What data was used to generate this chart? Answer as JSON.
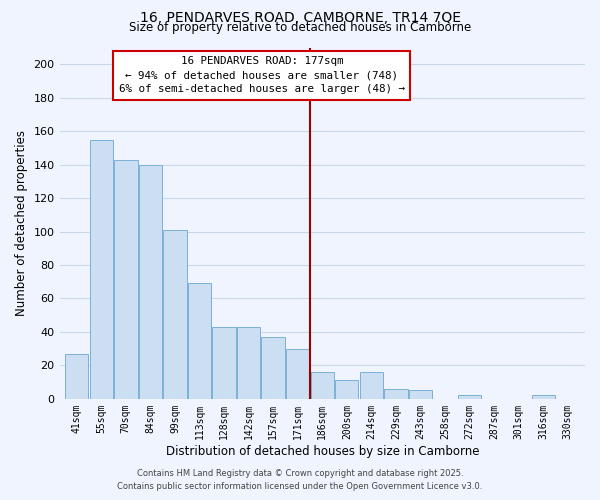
{
  "title": "16, PENDARVES ROAD, CAMBORNE, TR14 7QE",
  "subtitle": "Size of property relative to detached houses in Camborne",
  "xlabel": "Distribution of detached houses by size in Camborne",
  "ylabel": "Number of detached properties",
  "categories": [
    "41sqm",
    "55sqm",
    "70sqm",
    "84sqm",
    "99sqm",
    "113sqm",
    "128sqm",
    "142sqm",
    "157sqm",
    "171sqm",
    "186sqm",
    "200sqm",
    "214sqm",
    "229sqm",
    "243sqm",
    "258sqm",
    "272sqm",
    "287sqm",
    "301sqm",
    "316sqm",
    "330sqm"
  ],
  "values": [
    27,
    155,
    143,
    140,
    101,
    69,
    43,
    43,
    37,
    30,
    16,
    11,
    16,
    6,
    5,
    0,
    2,
    0,
    0,
    2,
    0
  ],
  "bar_color": "#ccdff2",
  "bar_edge_color": "#7ab0d8",
  "vline_x_index": 9.5,
  "vline_color": "#990000",
  "annotation_line1": "16 PENDARVES ROAD: 177sqm",
  "annotation_line2": "← 94% of detached houses are smaller (748)",
  "annotation_line3": "6% of semi-detached houses are larger (48) →",
  "ylim": [
    0,
    210
  ],
  "yticks": [
    0,
    20,
    40,
    60,
    80,
    100,
    120,
    140,
    160,
    180,
    200
  ],
  "footer_line1": "Contains HM Land Registry data © Crown copyright and database right 2025.",
  "footer_line2": "Contains public sector information licensed under the Open Government Licence v3.0.",
  "bg_color": "#f0f4ff",
  "grid_color": "#c8d8e8"
}
